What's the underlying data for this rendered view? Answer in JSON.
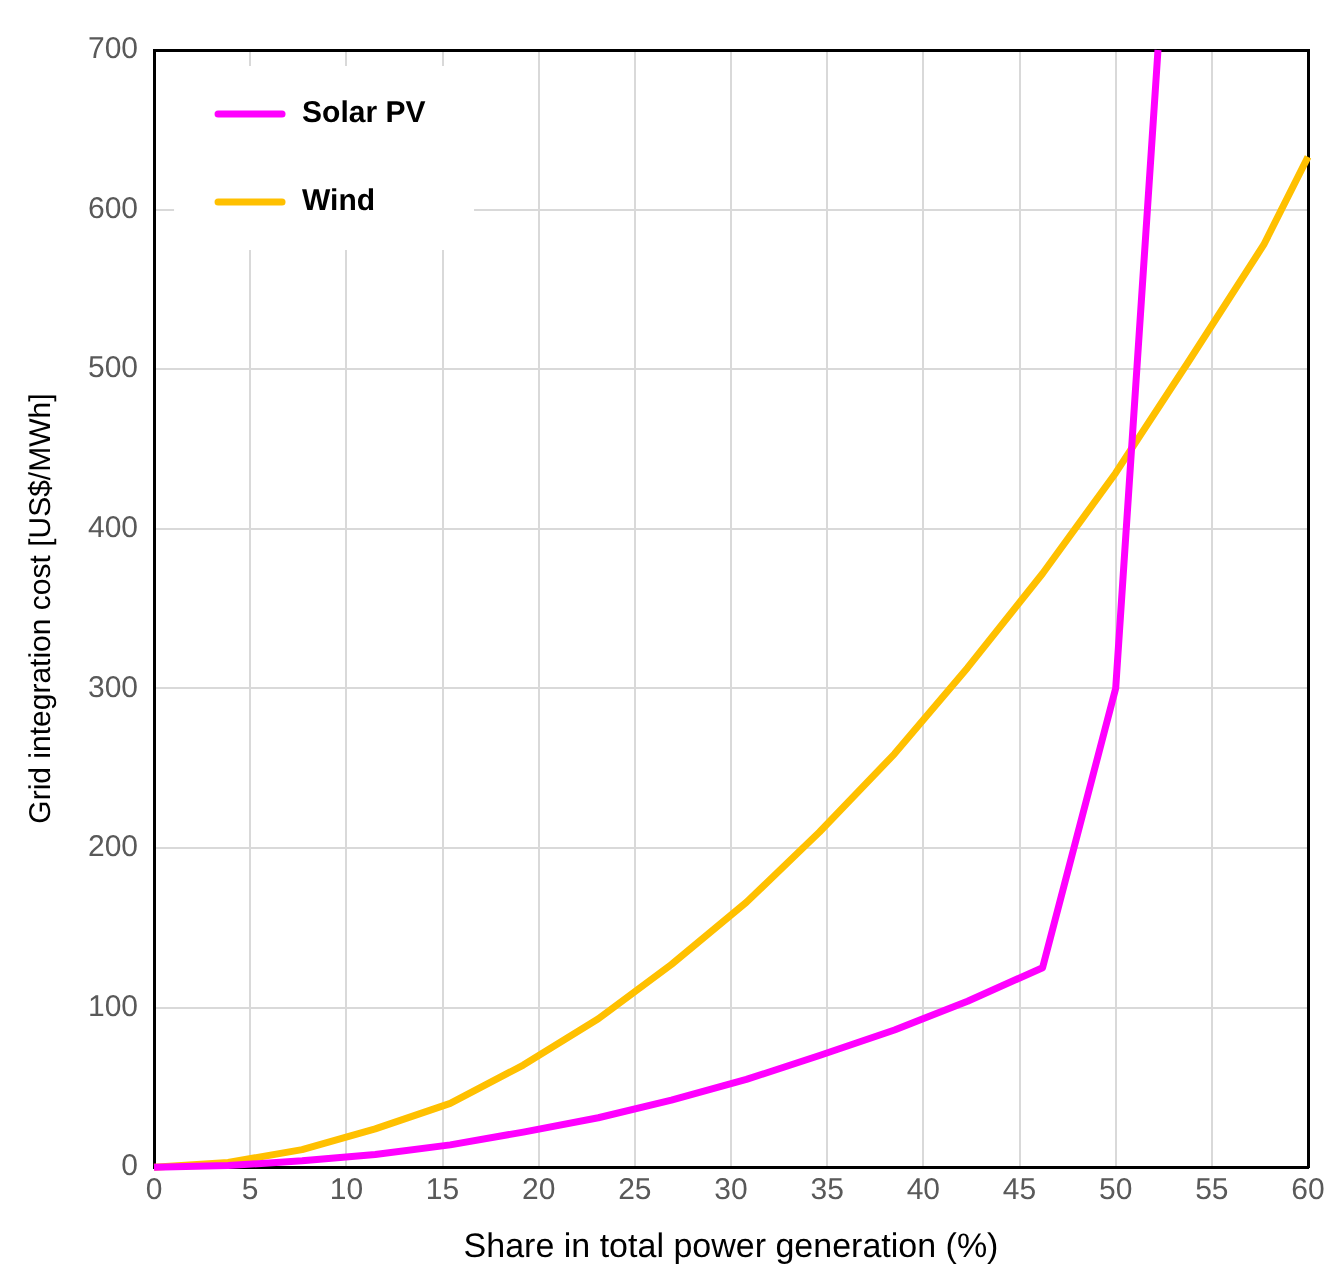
{
  "chart_data": {
    "type": "line",
    "xlabel": "Share in total power generation (%)",
    "ylabel": "Grid integration cost [US$/MWh]",
    "xlim": [
      0,
      60
    ],
    "xticks": [
      0,
      5,
      10,
      15,
      20,
      25,
      30,
      35,
      40,
      45,
      50,
      55,
      60
    ],
    "ylim": [
      0,
      700
    ],
    "yticks": [
      0,
      100,
      200,
      300,
      400,
      500,
      600,
      700
    ],
    "grid": true,
    "legend": "top left",
    "marker": "none",
    "line_style": "solid",
    "series": [
      {
        "name": "Solar PV",
        "color": "#ff00ff",
        "x": [
          0,
          3.85,
          7.7,
          11.5,
          15.4,
          19.2,
          23.1,
          26.9,
          30.8,
          34.6,
          38.5,
          42.3,
          46.2,
          50,
          52.2
        ],
        "values": [
          0,
          1,
          4,
          8,
          14,
          22,
          31,
          42,
          55,
          70,
          86,
          104,
          125,
          300,
          700
        ]
      },
      {
        "name": "Wind",
        "color": "#ffc000",
        "x": [
          0,
          3.85,
          7.7,
          11.5,
          15.4,
          19.2,
          23.1,
          26.9,
          30.8,
          34.6,
          38.5,
          42.3,
          46.2,
          50,
          53.8,
          57.7,
          60
        ],
        "values": [
          0,
          3,
          11,
          24,
          40,
          64,
          93,
          127,
          166,
          210,
          259,
          313,
          372,
          435,
          505,
          578,
          633
        ]
      }
    ]
  }
}
